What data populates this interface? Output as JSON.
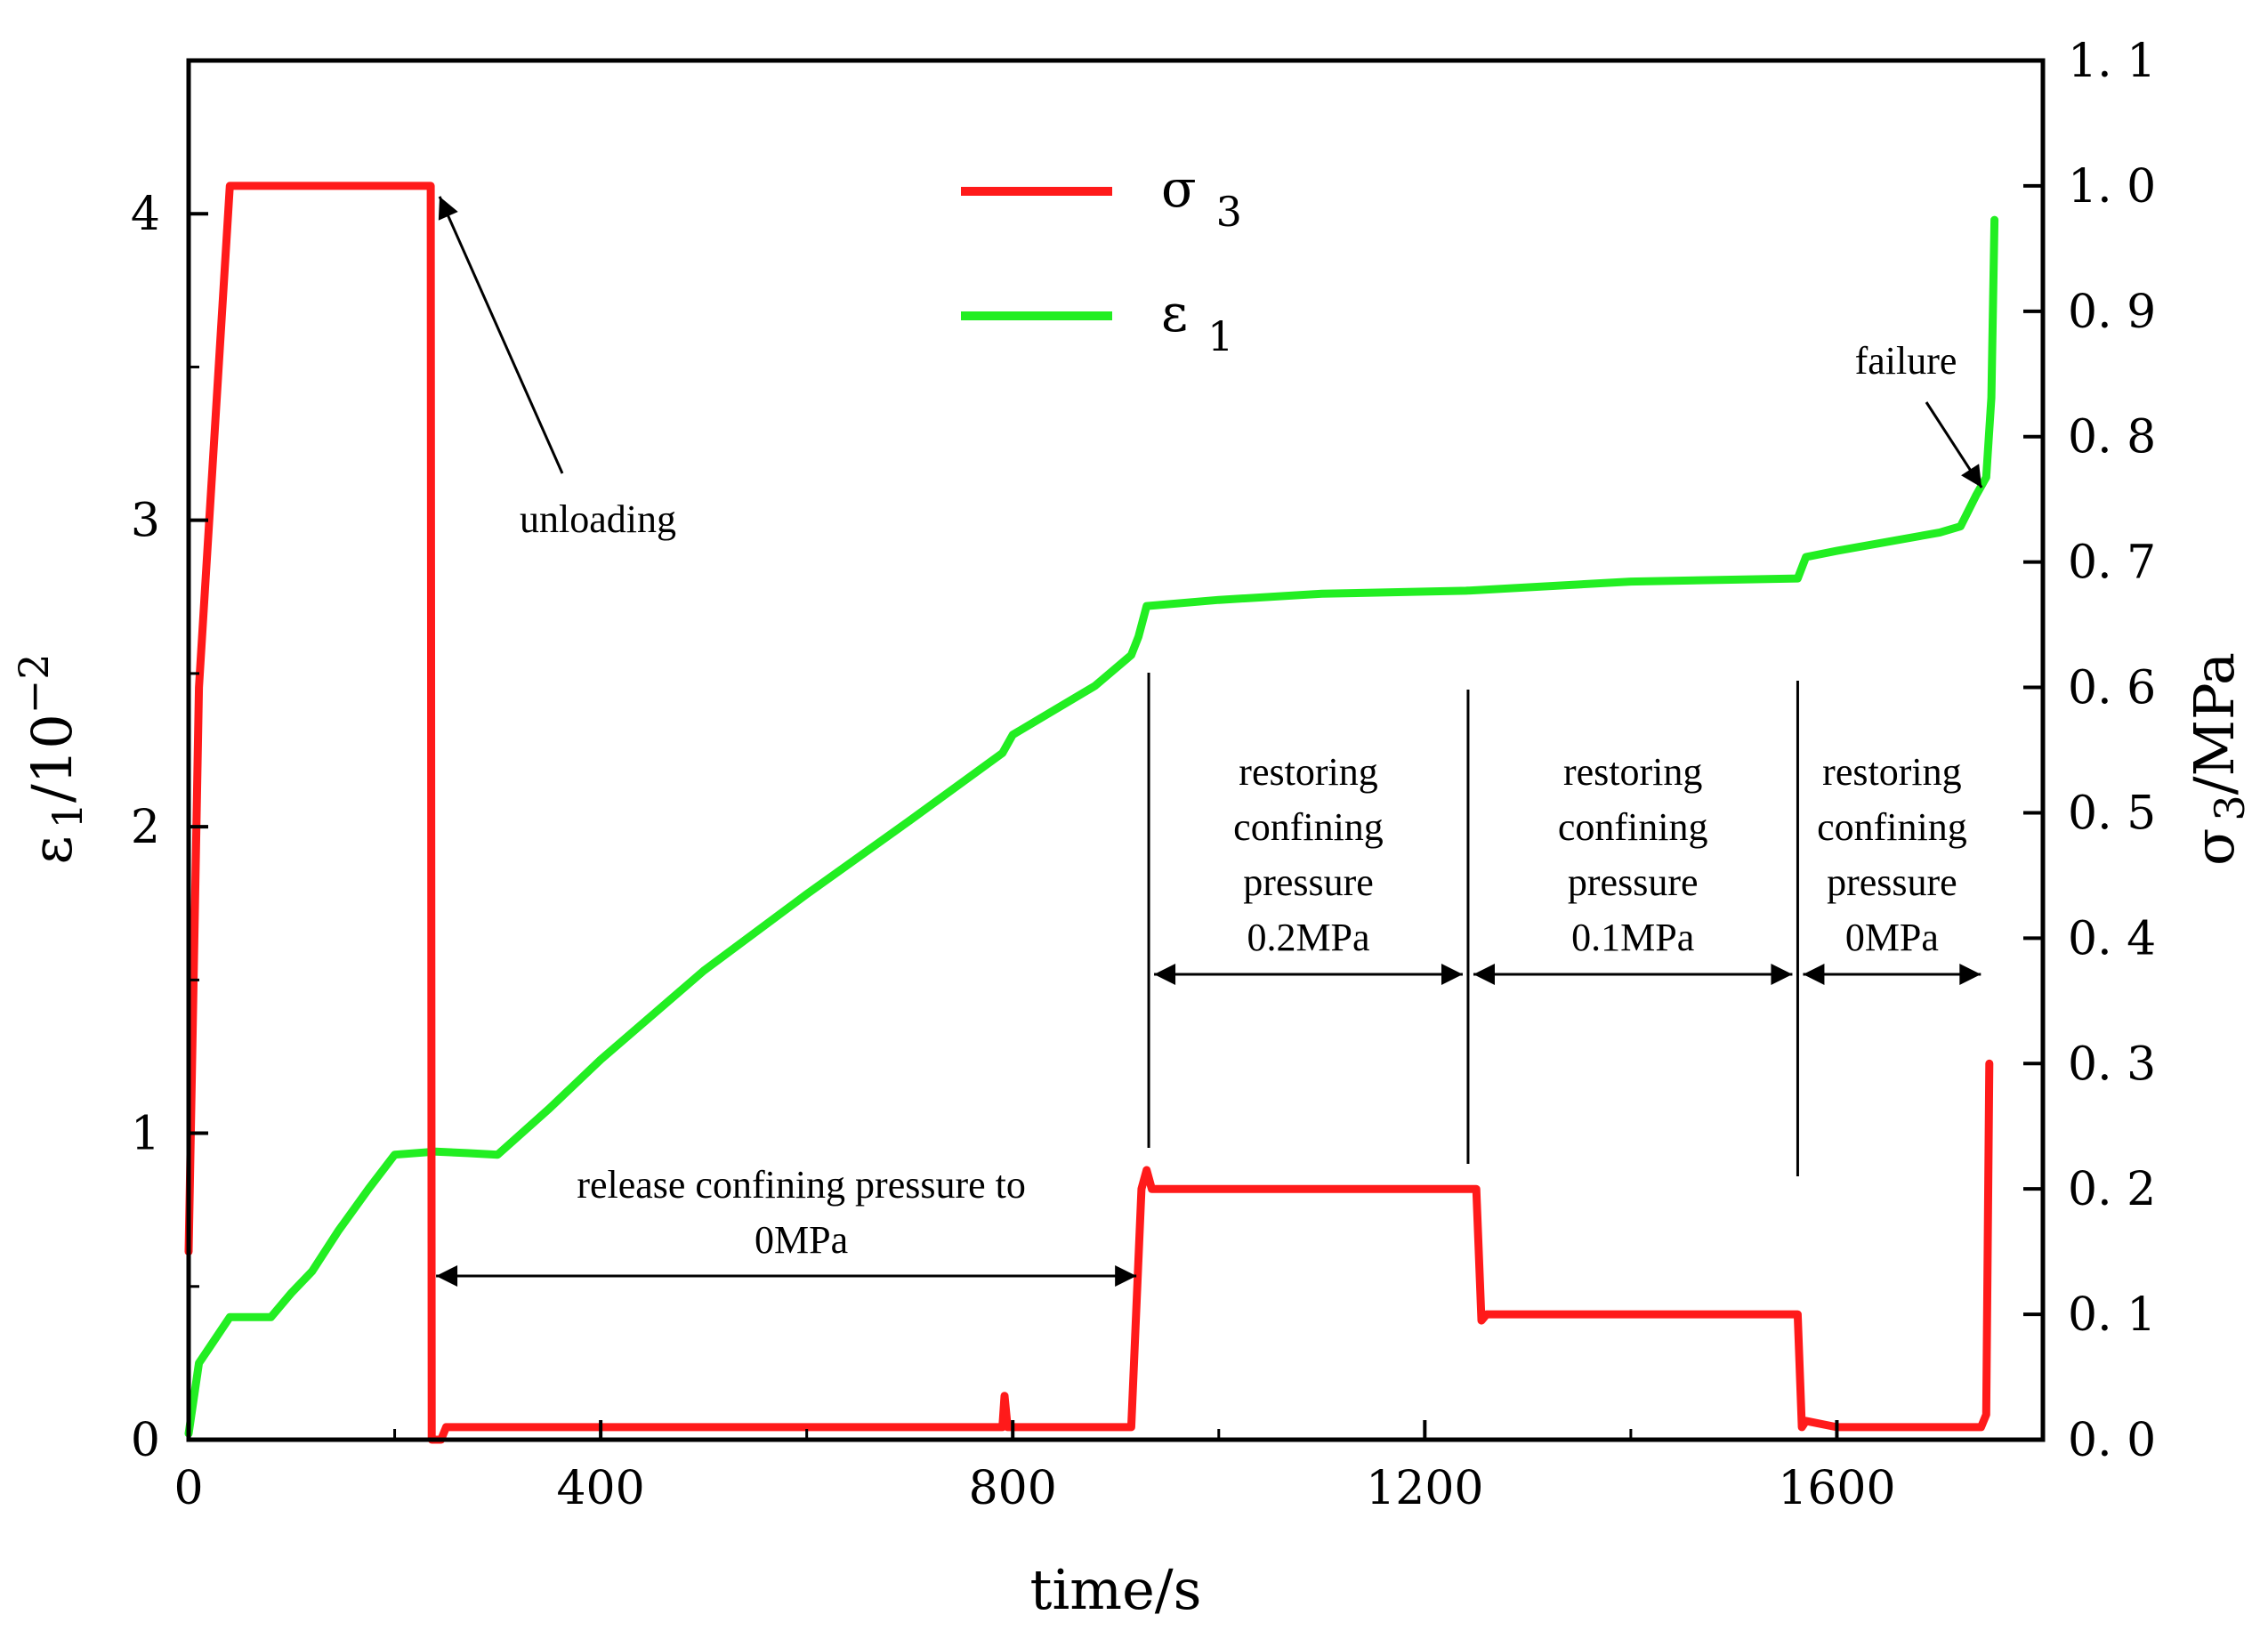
{
  "chart_data": {
    "type": "line",
    "xlabel": "time/s",
    "ylabel_left": {
      "symbol": "ε",
      "sub": "1",
      "rest": "/10",
      "sup": "−2"
    },
    "ylabel_right": {
      "symbol": "σ",
      "sub": "3",
      "rest": "/MPa"
    },
    "xlim": [
      0,
      1800
    ],
    "ylim_left": [
      0,
      4.5
    ],
    "ylim_right": [
      0,
      1.1
    ],
    "x_ticks": [
      0,
      400,
      800,
      1200,
      1600
    ],
    "x_tick_labels": [
      "0",
      "400",
      "800",
      "1200",
      "1600"
    ],
    "y_left_ticks": [
      0,
      1,
      2,
      3,
      4
    ],
    "y_left_tick_labels": [
      "0",
      "1",
      "2",
      "3",
      "4"
    ],
    "y_right_ticks": [
      0,
      0.1,
      0.2,
      0.3,
      0.4,
      0.5,
      0.6,
      0.7,
      0.8,
      0.9,
      1.0,
      1.1
    ],
    "y_right_tick_labels": [
      "0. 0",
      "0. 1",
      "0. 2",
      "0. 3",
      "0. 4",
      "0. 5",
      "0. 6",
      "0. 7",
      "0. 8",
      "0. 9",
      "1. 0",
      "1. 1"
    ],
    "legend": [
      {
        "name": "σ",
        "sub": "3",
        "color": "#ff1a1a"
      },
      {
        "name": "ε",
        "sub": "1",
        "color": "#22ee22"
      }
    ],
    "series": [
      {
        "name": "σ3",
        "axis": "right",
        "color": "#ff1a1a",
        "points": [
          [
            0,
            0.15
          ],
          [
            10,
            0.6
          ],
          [
            40,
            1.0
          ],
          [
            100,
            1.0
          ],
          [
            150,
            1.0
          ],
          [
            200,
            1.0
          ],
          [
            235,
            1.0
          ],
          [
            236,
            0.0
          ],
          [
            245,
            0.0
          ],
          [
            250,
            0.01
          ],
          [
            300,
            0.01
          ],
          [
            500,
            0.01
          ],
          [
            700,
            0.01
          ],
          [
            790,
            0.01
          ],
          [
            792,
            0.035
          ],
          [
            795,
            0.01
          ],
          [
            900,
            0.01
          ],
          [
            915,
            0.01
          ],
          [
            925,
            0.2
          ],
          [
            930,
            0.215
          ],
          [
            935,
            0.2
          ],
          [
            1000,
            0.2
          ],
          [
            1100,
            0.2
          ],
          [
            1200,
            0.2
          ],
          [
            1240,
            0.2
          ],
          [
            1250,
            0.2
          ],
          [
            1255,
            0.095
          ],
          [
            1260,
            0.1
          ],
          [
            1300,
            0.1
          ],
          [
            1400,
            0.1
          ],
          [
            1500,
            0.1
          ],
          [
            1562,
            0.1
          ],
          [
            1566,
            0.01
          ],
          [
            1570,
            0.015
          ],
          [
            1600,
            0.01
          ],
          [
            1700,
            0.01
          ],
          [
            1740,
            0.01
          ],
          [
            1745,
            0.02
          ],
          [
            1748,
            0.3
          ]
        ]
      },
      {
        "name": "ε1",
        "axis": "left",
        "color": "#22ee22",
        "points": [
          [
            0,
            0.02
          ],
          [
            10,
            0.25
          ],
          [
            20,
            0.3
          ],
          [
            40,
            0.4
          ],
          [
            80,
            0.4
          ],
          [
            100,
            0.48
          ],
          [
            120,
            0.55
          ],
          [
            145,
            0.68
          ],
          [
            175,
            0.82
          ],
          [
            200,
            0.93
          ],
          [
            240,
            0.94
          ],
          [
            270,
            0.935
          ],
          [
            300,
            0.93
          ],
          [
            350,
            1.08
          ],
          [
            400,
            1.24
          ],
          [
            500,
            1.53
          ],
          [
            600,
            1.78
          ],
          [
            700,
            2.02
          ],
          [
            790,
            2.24
          ],
          [
            800,
            2.3
          ],
          [
            840,
            2.38
          ],
          [
            880,
            2.46
          ],
          [
            915,
            2.56
          ],
          [
            922,
            2.62
          ],
          [
            930,
            2.72
          ],
          [
            1000,
            2.74
          ],
          [
            1100,
            2.76
          ],
          [
            1240,
            2.77
          ],
          [
            1400,
            2.8
          ],
          [
            1562,
            2.81
          ],
          [
            1570,
            2.88
          ],
          [
            1600,
            2.9
          ],
          [
            1700,
            2.96
          ],
          [
            1720,
            2.98
          ],
          [
            1735,
            3.08
          ],
          [
            1745,
            3.14
          ],
          [
            1750,
            3.4
          ],
          [
            1753,
            3.98
          ]
        ]
      }
    ],
    "annotations": [
      {
        "text": [
          "unloading"
        ],
        "target": [
          235,
          4.1
        ]
      },
      {
        "text": [
          "failure"
        ],
        "target": [
          1744,
          3.13
        ]
      },
      {
        "text": [
          "release confining pressure to",
          "0MPa"
        ],
        "span": [
          235,
          920
        ],
        "at": 0.5
      },
      {
        "text": [
          "restoring",
          "confining",
          "pressure",
          "0.2MPa"
        ],
        "span": [
          932,
          1242
        ],
        "at": 1.5
      },
      {
        "text": [
          "restoring",
          "confining",
          "pressure",
          "0.1MPa"
        ],
        "span": [
          1242,
          1562
        ],
        "at": 1.5
      },
      {
        "text": [
          "restoring",
          "confining",
          "pressure",
          "0MPa"
        ],
        "span": [
          1562,
          1745
        ],
        "at": 1.5
      }
    ]
  }
}
